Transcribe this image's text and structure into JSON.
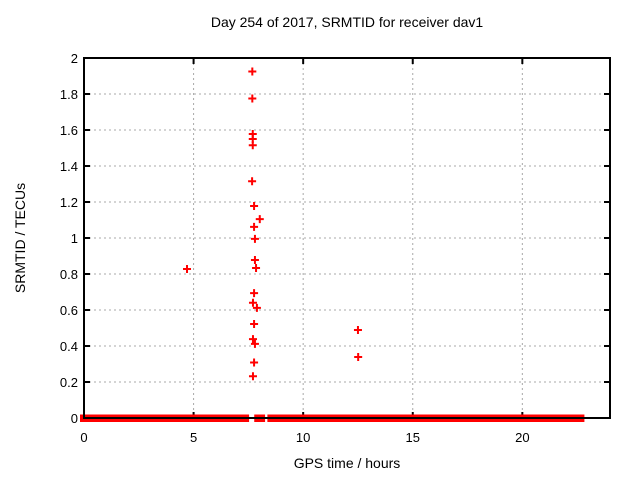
{
  "chart_data": {
    "type": "scatter",
    "title": "Day 254 of 2017, SRMTID for receiver dav1",
    "xlabel": "GPS time / hours",
    "ylabel": "SRMTID / TECUs",
    "xlim": [
      0,
      24
    ],
    "ylim": [
      0,
      2
    ],
    "xticks": {
      "values": [
        0,
        5,
        10,
        15,
        20
      ],
      "labels": [
        "0",
        "5",
        "10",
        "15",
        "20"
      ]
    },
    "yticks": {
      "values": [
        0,
        0.2,
        0.4,
        0.6,
        0.8,
        1,
        1.2,
        1.4,
        1.6,
        1.8,
        2
      ],
      "labels": [
        "0",
        "0.2",
        "0.4",
        "0.6",
        "0.8",
        "1",
        "1.2",
        "1.4",
        "1.6",
        "1.8",
        "2"
      ]
    },
    "grid": true,
    "legend": "none",
    "marker": "plus",
    "series": [
      {
        "name": "SRMTID",
        "color": "#ff0000",
        "points": [
          [
            4.7,
            0.828
          ],
          [
            7.68,
            1.925
          ],
          [
            7.68,
            1.775
          ],
          [
            7.7,
            1.578
          ],
          [
            7.7,
            1.55
          ],
          [
            7.7,
            1.515
          ],
          [
            7.67,
            1.315
          ],
          [
            7.76,
            1.178
          ],
          [
            8.02,
            1.105
          ],
          [
            7.76,
            1.062
          ],
          [
            7.8,
            0.995
          ],
          [
            7.8,
            0.878
          ],
          [
            7.85,
            0.833
          ],
          [
            7.76,
            0.694
          ],
          [
            7.71,
            0.64
          ],
          [
            7.89,
            0.612
          ],
          [
            7.76,
            0.522
          ],
          [
            7.71,
            0.438
          ],
          [
            7.8,
            0.412
          ],
          [
            7.76,
            0.308
          ],
          [
            7.71,
            0.232
          ],
          [
            12.5,
            0.489
          ],
          [
            12.51,
            0.339
          ]
        ]
      }
    ],
    "baseline_y": 0,
    "baseline_segments_hours": [
      [
        0,
        7.35
      ],
      [
        7.95,
        8.08
      ],
      [
        8.55,
        22.65
      ]
    ],
    "colors": {
      "marker": "#ff0000",
      "grid": "#a8a8a8",
      "border": "#000000",
      "background": "#ffffff",
      "text": "#000000"
    }
  }
}
